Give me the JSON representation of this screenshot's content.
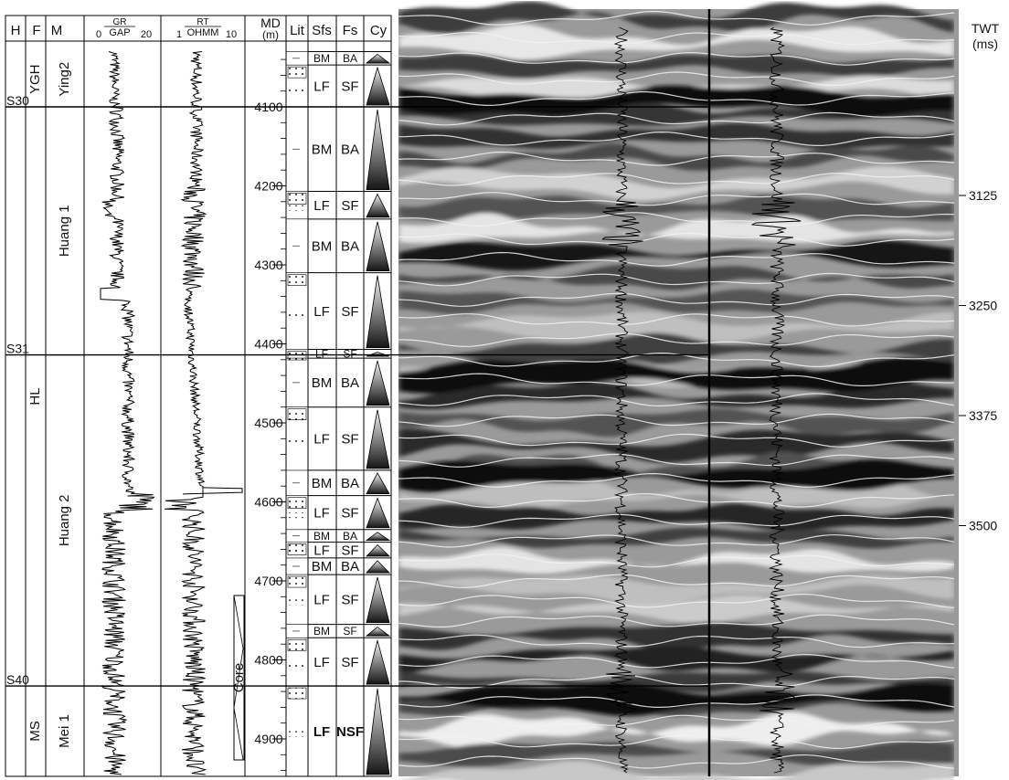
{
  "headers": {
    "h": "H",
    "f": "F",
    "m": "M",
    "gr_title": "GR",
    "gr_unit": "GAP",
    "gr_min": "0",
    "gr_max": "20",
    "rt_title": "RT",
    "rt_unit": "OHMM",
    "rt_min": "1",
    "rt_max": "10",
    "md": "MD",
    "md_unit": "(m)",
    "lit": "Lit",
    "sfs": "Sfs",
    "fs": "Fs",
    "cy": "Cy"
  },
  "horizons": [
    {
      "label": "S30",
      "depth": 4100
    },
    {
      "label": "S31",
      "depth": 4414
    },
    {
      "label": "S40",
      "depth": 4833
    }
  ],
  "formations": [
    {
      "label": "YGH",
      "top": 4030,
      "bottom": 4100
    },
    {
      "label": "HL",
      "top": 4100,
      "bottom": 4833
    },
    {
      "label": "MS",
      "top": 4833,
      "bottom": 4950
    }
  ],
  "members": [
    {
      "label": "Ying2",
      "top": 4030,
      "bottom": 4100
    },
    {
      "label": "Huang 1",
      "top": 4100,
      "bottom": 4414
    },
    {
      "label": "Huang 2",
      "top": 4414,
      "bottom": 4833
    },
    {
      "label": "Mei 1",
      "top": 4833,
      "bottom": 4950
    }
  ],
  "md_ticks": [
    4100,
    4200,
    4300,
    4400,
    4500,
    4600,
    4700,
    4800,
    4900
  ],
  "core_label": "Core",
  "facies": [
    {
      "sfs": "BM",
      "fs": "BA",
      "top": 4030,
      "bottom": 4047
    },
    {
      "sfs": "LF",
      "fs": "SF",
      "top": 4047,
      "bottom": 4100
    },
    {
      "sfs": "BM",
      "fs": "BA",
      "top": 4100,
      "bottom": 4207
    },
    {
      "sfs": "LF",
      "fs": "SF",
      "top": 4207,
      "bottom": 4242
    },
    {
      "sfs": "BM",
      "fs": "BA",
      "top": 4242,
      "bottom": 4310
    },
    {
      "sfs": "LF",
      "fs": "SF",
      "top": 4310,
      "bottom": 4407
    },
    {
      "sfs": "LF",
      "fs": "SF",
      "top": 4407,
      "bottom": 4418
    },
    {
      "sfs": "BM",
      "fs": "BA",
      "top": 4418,
      "bottom": 4480
    },
    {
      "sfs": "LF",
      "fs": "SF",
      "top": 4480,
      "bottom": 4560
    },
    {
      "sfs": "BM",
      "fs": "BA",
      "top": 4560,
      "bottom": 4592
    },
    {
      "sfs": "LF",
      "fs": "SF",
      "top": 4592,
      "bottom": 4635
    },
    {
      "sfs": "BM",
      "fs": "BA",
      "top": 4635,
      "bottom": 4651
    },
    {
      "sfs": "LF",
      "fs": "SF",
      "top": 4651,
      "bottom": 4671
    },
    {
      "sfs": "BM",
      "fs": "BA",
      "top": 4671,
      "bottom": 4692
    },
    {
      "sfs": "LF",
      "fs": "SF",
      "top": 4692,
      "bottom": 4755
    },
    {
      "sfs": "BM",
      "fs": "SF",
      "top": 4755,
      "bottom": 4772
    },
    {
      "sfs": "LF",
      "fs": "SF",
      "top": 4772,
      "bottom": 4833
    },
    {
      "sfs": "LF",
      "fs": "NSF",
      "top": 4833,
      "bottom": 4950
    }
  ],
  "twt": {
    "title": "TWT",
    "unit": "(ms)",
    "ticks": [
      3125,
      3250,
      3375,
      3500
    ]
  }
}
